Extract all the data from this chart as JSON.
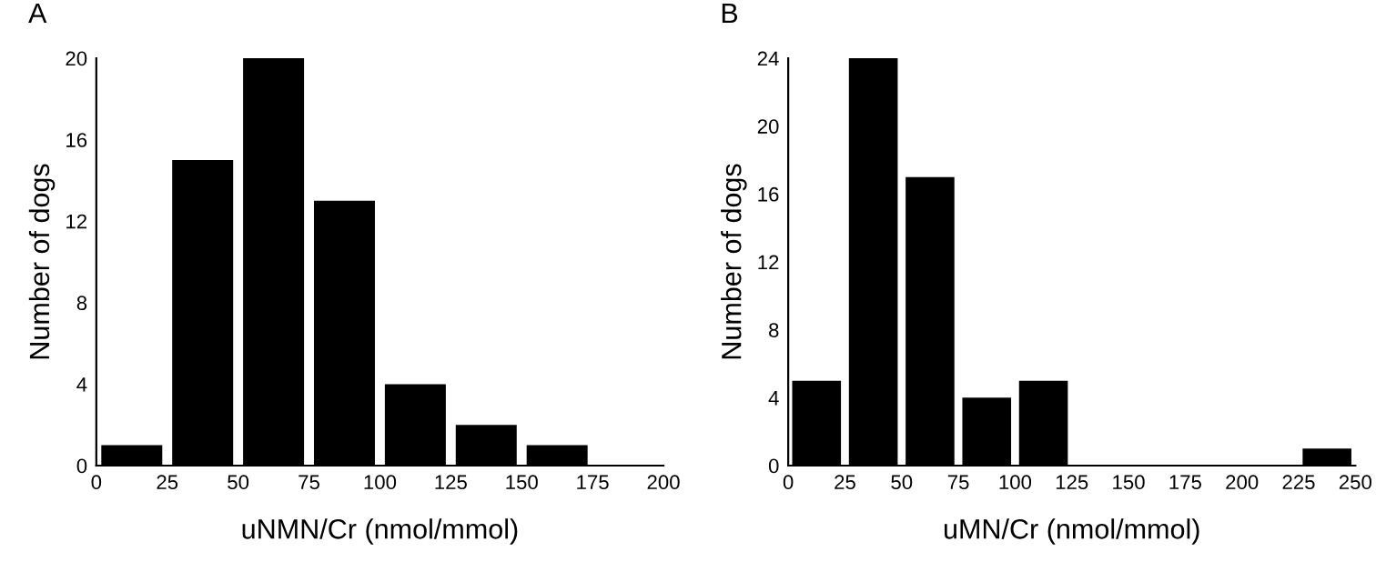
{
  "chart_data": [
    {
      "type": "histogram",
      "title": "A",
      "xlabel": "uNMN/Cr (nmol/mmol)",
      "ylabel": "Number of dogs",
      "color": "#000000",
      "bins": [
        0,
        25,
        50,
        75,
        100,
        125,
        150,
        175
      ],
      "values": [
        1,
        15,
        20,
        13,
        4,
        2,
        1
      ],
      "xlim": [
        0,
        200
      ],
      "xticks": [
        0,
        25,
        50,
        75,
        100,
        125,
        150,
        175,
        200
      ],
      "ylim": [
        0,
        20
      ],
      "yticks": [
        0,
        4,
        8,
        12,
        16,
        20
      ],
      "grid": false,
      "legend": false
    },
    {
      "type": "histogram",
      "title": "B",
      "xlabel": "uMN/Cr (nmol/mmol)",
      "ylabel": "Number of dogs",
      "color": "#000000",
      "bins": [
        0,
        25,
        50,
        75,
        100,
        125,
        150,
        175,
        200,
        225,
        250
      ],
      "values": [
        5,
        24,
        17,
        4,
        5,
        0,
        0,
        0,
        0,
        1
      ],
      "xlim": [
        0,
        250
      ],
      "xticks": [
        0,
        25,
        50,
        75,
        100,
        125,
        150,
        175,
        200,
        225,
        250
      ],
      "ylim": [
        0,
        24
      ],
      "yticks": [
        0,
        4,
        8,
        12,
        16,
        20,
        24
      ],
      "grid": false,
      "legend": false
    }
  ]
}
